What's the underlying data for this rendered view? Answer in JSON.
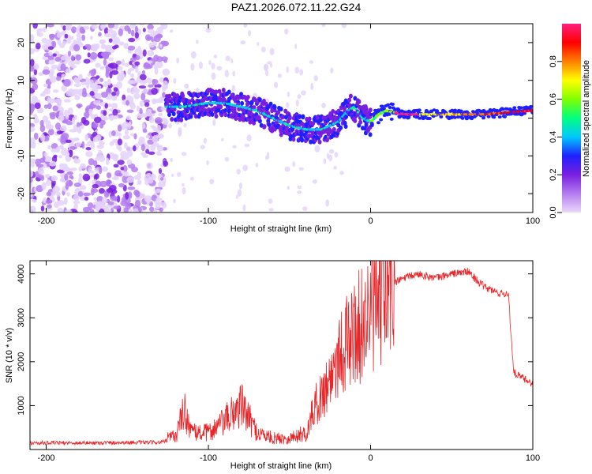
{
  "title": "PAZ1.2026.072.11.22.G24",
  "chart_data": [
    {
      "type": "heatmap",
      "panel": "top",
      "xlabel": "Height of straight line (km)",
      "ylabel": "Frequency (Hz)",
      "xlim": [
        -210,
        100
      ],
      "ylim": [
        -25,
        25
      ],
      "xticks": [
        -200,
        -100,
        0,
        100
      ],
      "yticks": [
        -20,
        -10,
        0,
        10,
        20
      ],
      "colorbar": {
        "label": "Normalized spectral amplitude",
        "range": [
          0,
          1
        ],
        "ticks": [
          0.0,
          0.2,
          0.4,
          0.6,
          0.8
        ],
        "colors": [
          "#ead9fb",
          "#b47cf0",
          "#7a1fe0",
          "#2020ff",
          "#00c8ff",
          "#00ff80",
          "#80ff00",
          "#ffff00",
          "#ff8000",
          "#ff0000",
          "#ff2080"
        ]
      },
      "ridge": {
        "x": [
          -126,
          -115,
          -100,
          -90,
          -80,
          -70,
          -60,
          -50,
          -40,
          -30,
          -20,
          -14,
          -10,
          -5,
          0,
          5,
          10,
          20,
          30,
          50,
          70,
          100
        ],
        "freq": [
          3,
          3,
          4,
          4,
          3,
          2,
          0,
          -2,
          -3,
          -3,
          -1,
          2,
          3,
          0,
          -1,
          1,
          2,
          1,
          1,
          1,
          1,
          2
        ]
      }
    },
    {
      "type": "line",
      "panel": "bottom",
      "xlabel": "Height of straight line (km)",
      "ylabel": "SNR (10 * v/v)",
      "xlim": [
        -210,
        100
      ],
      "ylim": [
        0,
        4300
      ],
      "xticks": [
        -200,
        -100,
        0,
        100
      ],
      "yticks": [
        1000,
        2000,
        3000,
        4000
      ],
      "color": "#e8262a",
      "series": [
        {
          "name": "SNR",
          "x": [
            -210,
            -190,
            -170,
            -150,
            -130,
            -120,
            -115,
            -110,
            -100,
            -90,
            -80,
            -70,
            -60,
            -50,
            -40,
            -35,
            -30,
            -25,
            -20,
            -15,
            -10,
            -5,
            0,
            10,
            20,
            30,
            40,
            50,
            60,
            70,
            80,
            85,
            88,
            90,
            95,
            100
          ],
          "y": [
            150,
            150,
            150,
            160,
            160,
            250,
            700,
            300,
            300,
            500,
            800,
            300,
            200,
            200,
            300,
            1000,
            1300,
            1700,
            2300,
            2500,
            2800,
            3000,
            3300,
            3700,
            3900,
            4000,
            3900,
            4000,
            4050,
            3700,
            3550,
            3550,
            1800,
            1700,
            1600,
            1500
          ]
        }
      ]
    }
  ]
}
